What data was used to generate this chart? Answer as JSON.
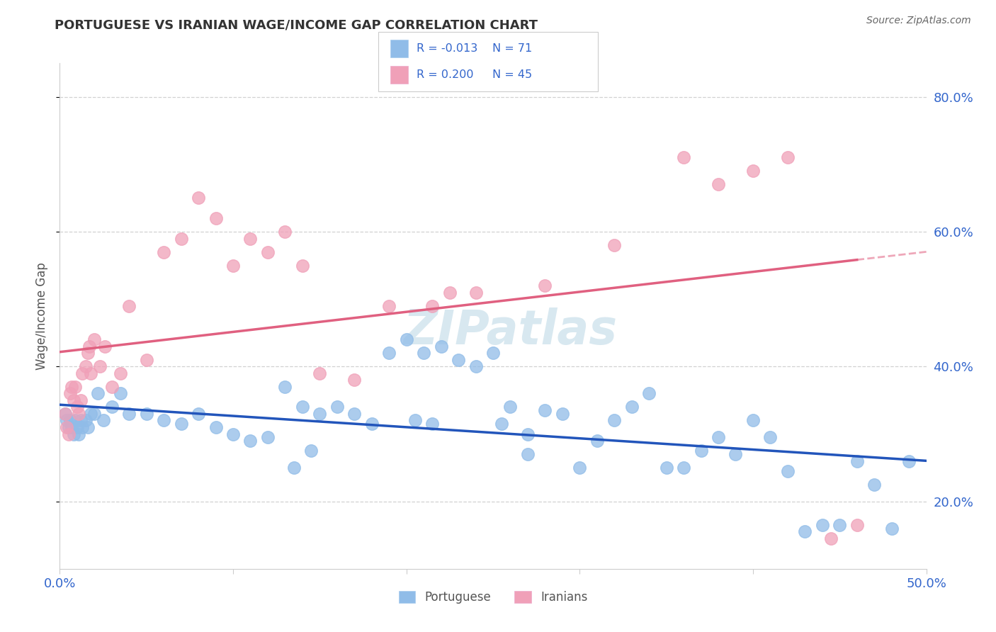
{
  "title": "PORTUGUESE VS IRANIAN WAGE/INCOME GAP CORRELATION CHART",
  "source": "Source: ZipAtlas.com",
  "ylabel": "Wage/Income Gap",
  "xlim": [
    0.0,
    50.0
  ],
  "ylim": [
    10.0,
    85.0
  ],
  "yticks": [
    20.0,
    40.0,
    60.0,
    80.0
  ],
  "ytick_labels": [
    "20.0%",
    "40.0%",
    "60.0%",
    "80.0%"
  ],
  "portuguese_color": "#90bce8",
  "iranian_color": "#f0a0b8",
  "portuguese_R": -0.013,
  "portuguese_N": 71,
  "iranian_R": 0.2,
  "iranian_N": 45,
  "text_blue_color": "#3366cc",
  "trendline_blue_color": "#2255bb",
  "trendline_pink_color": "#e06080",
  "background_color": "#ffffff",
  "grid_color": "#cccccc",
  "watermark_color": "#d8e8f0",
  "title_color": "#333333",
  "source_color": "#666666",
  "ylabel_color": "#555555",
  "portuguese_x": [
    0.3,
    0.4,
    0.5,
    0.6,
    0.7,
    0.8,
    0.9,
    1.0,
    1.1,
    1.2,
    1.3,
    1.5,
    1.6,
    1.8,
    2.0,
    2.2,
    2.5,
    3.0,
    3.5,
    4.0,
    5.0,
    6.0,
    7.0,
    8.0,
    9.0,
    10.0,
    11.0,
    12.0,
    13.0,
    14.0,
    15.0,
    16.0,
    17.0,
    18.0,
    19.0,
    20.0,
    21.0,
    22.0,
    23.0,
    24.0,
    25.0,
    26.0,
    27.0,
    28.0,
    29.0,
    30.0,
    31.0,
    32.0,
    33.0,
    34.0,
    35.0,
    36.0,
    37.0,
    38.0,
    39.0,
    40.0,
    41.0,
    42.0,
    43.0,
    44.0,
    45.0,
    46.0,
    47.0,
    48.0,
    49.0,
    27.0,
    13.5,
    14.5,
    20.5,
    21.5,
    25.5
  ],
  "portuguese_y": [
    33.0,
    32.0,
    31.0,
    32.0,
    31.0,
    30.0,
    32.0,
    31.0,
    30.0,
    32.0,
    31.0,
    32.0,
    31.0,
    33.0,
    33.0,
    36.0,
    32.0,
    34.0,
    36.0,
    33.0,
    33.0,
    32.0,
    31.5,
    33.0,
    31.0,
    30.0,
    29.0,
    29.5,
    37.0,
    34.0,
    33.0,
    34.0,
    33.0,
    31.5,
    42.0,
    44.0,
    42.0,
    43.0,
    41.0,
    40.0,
    42.0,
    34.0,
    30.0,
    33.5,
    33.0,
    25.0,
    29.0,
    32.0,
    34.0,
    36.0,
    25.0,
    25.0,
    27.5,
    29.5,
    27.0,
    32.0,
    29.5,
    24.5,
    15.5,
    16.5,
    16.5,
    26.0,
    22.5,
    16.0,
    26.0,
    27.0,
    25.0,
    27.5,
    32.0,
    31.5,
    31.5
  ],
  "iranian_x": [
    0.3,
    0.4,
    0.5,
    0.6,
    0.7,
    0.8,
    0.9,
    1.0,
    1.1,
    1.2,
    1.3,
    1.5,
    1.6,
    1.7,
    1.8,
    2.0,
    2.3,
    2.6,
    3.0,
    3.5,
    4.0,
    5.0,
    6.0,
    7.0,
    8.0,
    9.0,
    10.0,
    11.0,
    12.0,
    13.0,
    14.0,
    15.0,
    17.0,
    19.0,
    21.5,
    22.5,
    24.0,
    28.0,
    32.0,
    36.0,
    38.0,
    40.0,
    42.0,
    44.5,
    46.0
  ],
  "iranian_y": [
    33.0,
    31.0,
    30.0,
    36.0,
    37.0,
    35.0,
    37.0,
    34.0,
    33.0,
    35.0,
    39.0,
    40.0,
    42.0,
    43.0,
    39.0,
    44.0,
    40.0,
    43.0,
    37.0,
    39.0,
    49.0,
    41.0,
    57.0,
    59.0,
    65.0,
    62.0,
    55.0,
    59.0,
    57.0,
    60.0,
    55.0,
    39.0,
    38.0,
    49.0,
    49.0,
    51.0,
    51.0,
    52.0,
    58.0,
    71.0,
    67.0,
    69.0,
    71.0,
    14.5,
    16.5
  ]
}
